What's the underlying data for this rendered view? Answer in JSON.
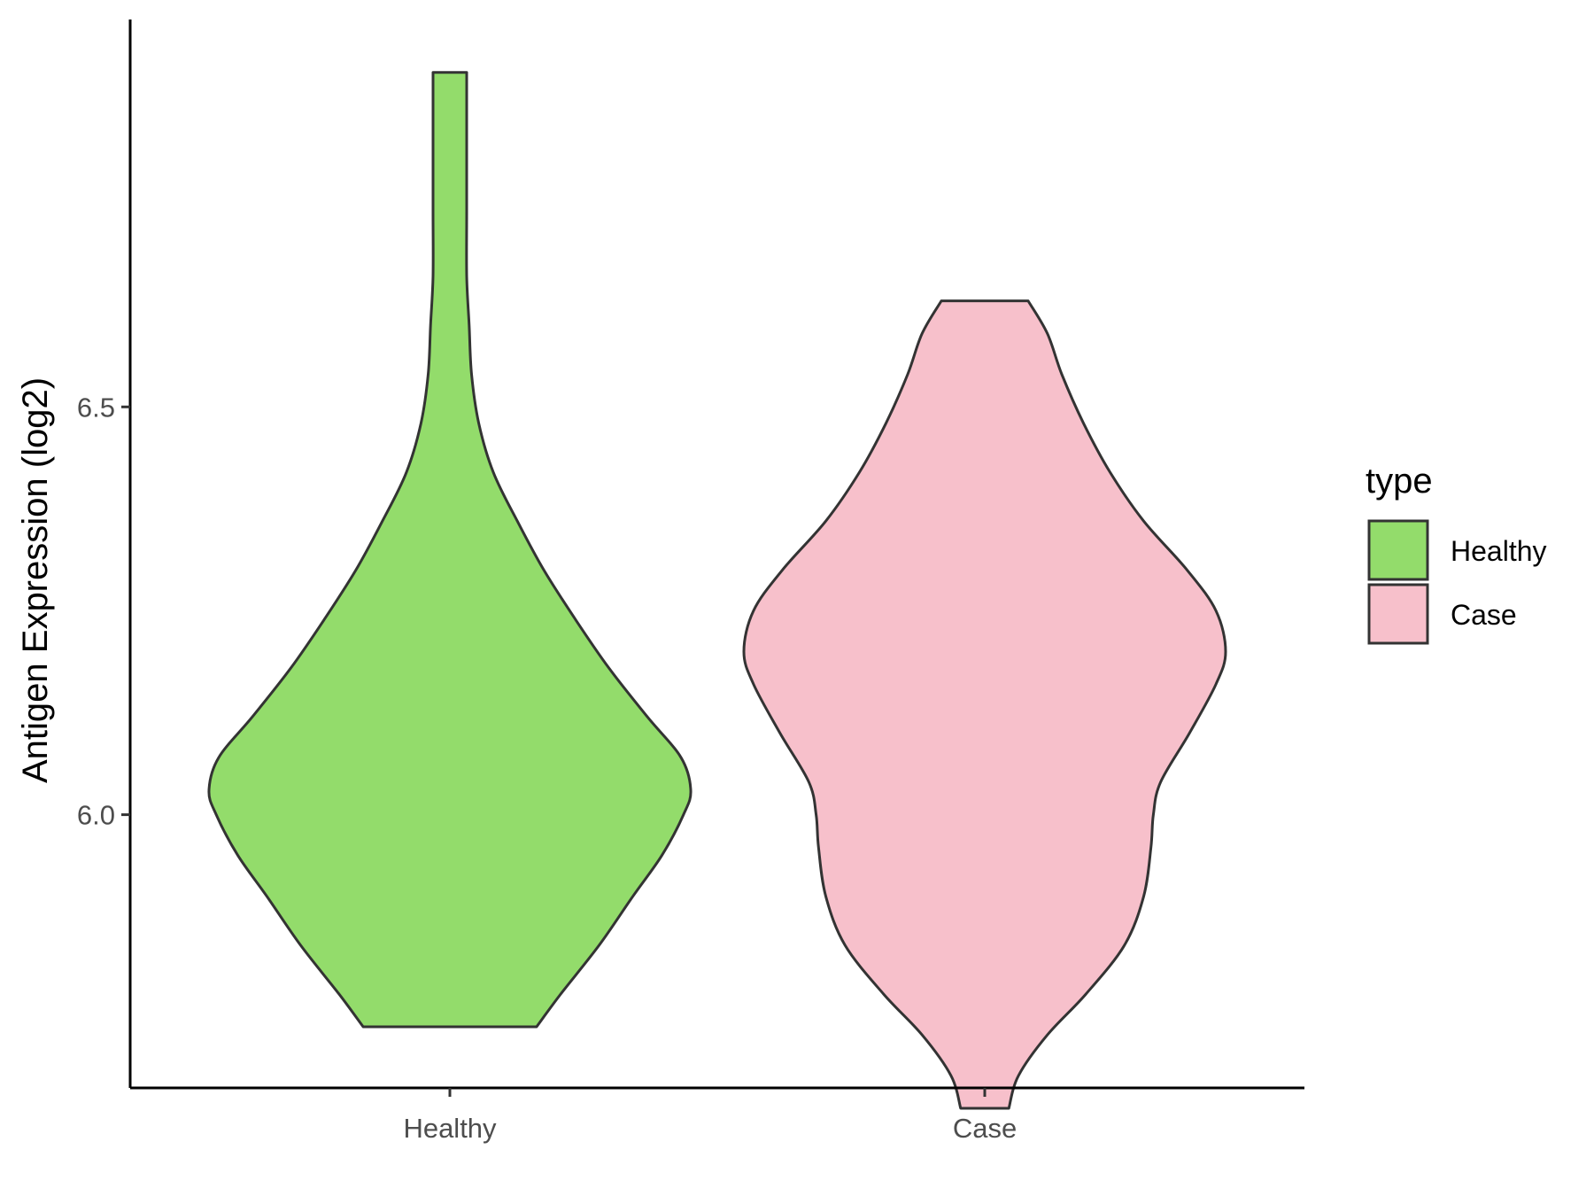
{
  "chart_data": {
    "type": "violin",
    "title": "",
    "xlabel": "",
    "ylabel": "Antigen Expression (log2)",
    "ylim": [
      5.665,
      6.975
    ],
    "yticks": [
      {
        "value": 6.0,
        "label": "6.0"
      },
      {
        "value": 6.5,
        "label": "6.5"
      }
    ],
    "categories": [
      "Healthy",
      "Case"
    ],
    "grid": false,
    "legend": {
      "title": "type",
      "placement": "right",
      "entries": [
        {
          "label": "Healthy",
          "color": "#93dc6b"
        },
        {
          "label": "Case",
          "color": "#f7c0cb"
        }
      ]
    },
    "series": [
      {
        "category": "Healthy",
        "color": "#93dc6b",
        "min": 5.74,
        "max": 6.91,
        "density_profile": [
          [
            5.74,
            0.36
          ],
          [
            5.78,
            0.46
          ],
          [
            5.84,
            0.62
          ],
          [
            5.9,
            0.76
          ],
          [
            5.95,
            0.88
          ],
          [
            6.0,
            0.97
          ],
          [
            6.03,
            1.0
          ],
          [
            6.07,
            0.96
          ],
          [
            6.12,
            0.82
          ],
          [
            6.18,
            0.66
          ],
          [
            6.24,
            0.52
          ],
          [
            6.3,
            0.39
          ],
          [
            6.36,
            0.28
          ],
          [
            6.42,
            0.18
          ],
          [
            6.48,
            0.12
          ],
          [
            6.54,
            0.09
          ],
          [
            6.6,
            0.08
          ],
          [
            6.66,
            0.07
          ],
          [
            6.74,
            0.07
          ],
          [
            6.84,
            0.07
          ],
          [
            6.91,
            0.07
          ]
        ]
      },
      {
        "category": "Case",
        "color": "#f7c0cb",
        "min": 5.64,
        "max": 6.63,
        "density_profile": [
          [
            5.64,
            0.1
          ],
          [
            5.68,
            0.14
          ],
          [
            5.73,
            0.26
          ],
          [
            5.78,
            0.42
          ],
          [
            5.84,
            0.58
          ],
          [
            5.9,
            0.66
          ],
          [
            5.96,
            0.69
          ],
          [
            6.0,
            0.7
          ],
          [
            6.04,
            0.73
          ],
          [
            6.1,
            0.85
          ],
          [
            6.16,
            0.96
          ],
          [
            6.2,
            1.0
          ],
          [
            6.25,
            0.96
          ],
          [
            6.3,
            0.84
          ],
          [
            6.36,
            0.66
          ],
          [
            6.42,
            0.52
          ],
          [
            6.48,
            0.41
          ],
          [
            6.54,
            0.32
          ],
          [
            6.59,
            0.26
          ],
          [
            6.63,
            0.18
          ]
        ]
      }
    ]
  }
}
